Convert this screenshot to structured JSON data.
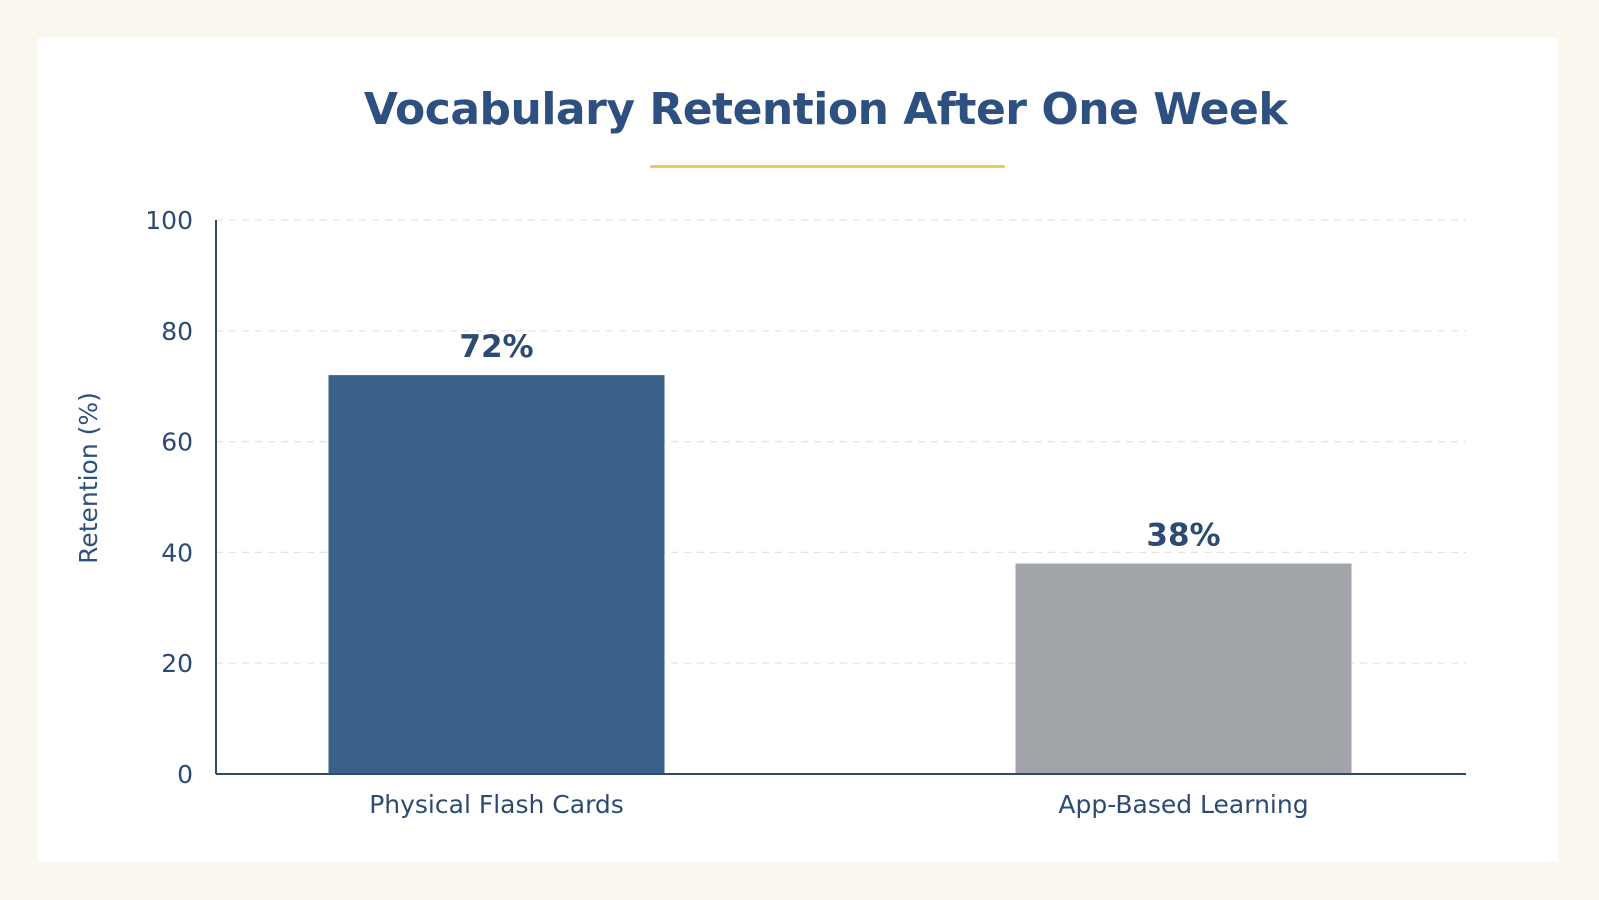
{
  "chart_data": {
    "type": "bar",
    "title": "Vocabulary Retention After One Week",
    "xlabel": "",
    "ylabel": "Retention (%)",
    "ylim": [
      0,
      100
    ],
    "yticks": [
      0,
      20,
      40,
      60,
      80,
      100
    ],
    "grid": true,
    "categories": [
      "Physical Flash Cards",
      "App-Based Learning"
    ],
    "values": [
      72,
      38
    ],
    "data_labels": [
      "72%",
      "38%"
    ],
    "colors": [
      "#3a6189",
      "#a1a4a8"
    ],
    "accent_color": "#f0c75e",
    "text_color": "#2d4a73"
  }
}
